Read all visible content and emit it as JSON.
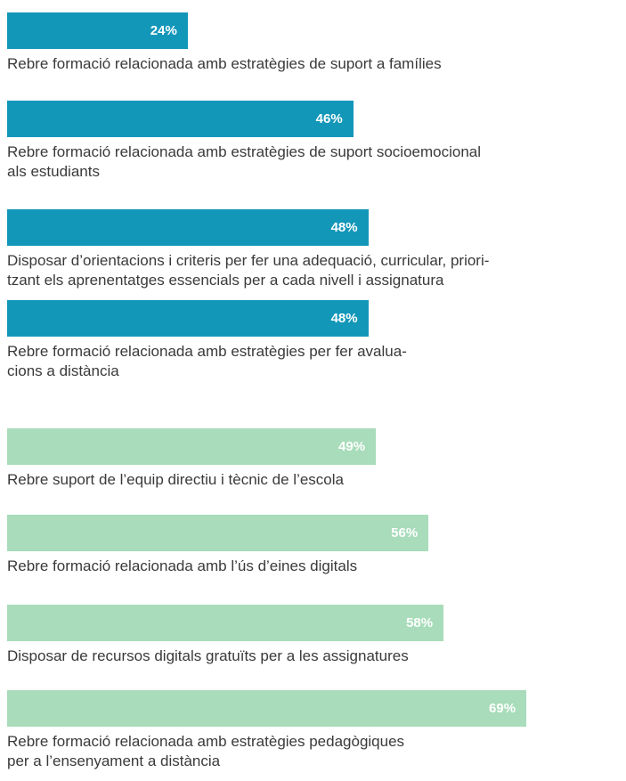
{
  "chart_data": {
    "type": "bar",
    "orientation": "horizontal",
    "categories": [
      "Rebre formació relacionada amb estratègies de suport a famílies",
      "Rebre formació relacionada amb estratègies de suport socioemocional\nals estudiants",
      "Disposar d’orientacions i criteris per fer una adequació, curricular, priori-\ntzant els aprenentatges essencials per a cada nivell i assignatura",
      "Rebre formació relacionada amb estratègies per fer avalua-\ncions a distància",
      "Rebre suport de l’equip directiu i tècnic de l’escola",
      "Rebre formació relacionada amb l’ús d’eines digitals",
      "Disposar de recursos digitals gratuïts per a les assignatures",
      "Rebre formació relacionada amb estratègies pedagògiques\nper a l’ensenyament a distància"
    ],
    "values": [
      24,
      46,
      48,
      48,
      49,
      56,
      58,
      69
    ],
    "value_labels": [
      "24%",
      "46%",
      "48%",
      "48%",
      "49%",
      "56%",
      "58%",
      "69%"
    ],
    "colors": [
      "#1397b9",
      "#1397b9",
      "#1397b9",
      "#1397b9",
      "#a8dcba",
      "#a8dcba",
      "#a8dcba",
      "#a8dcba"
    ]
  }
}
